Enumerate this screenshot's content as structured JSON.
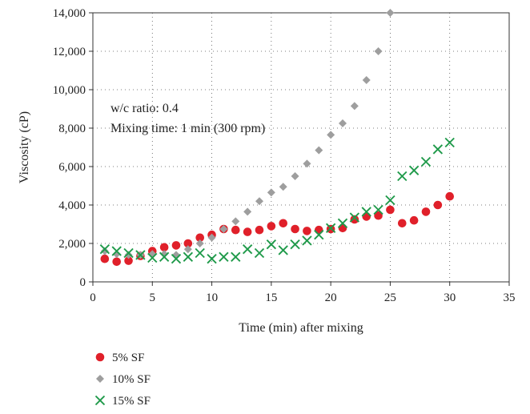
{
  "chart_data": {
    "type": "scatter",
    "xlabel": "Time (min) after mixing",
    "ylabel": "Viscosity (cP)",
    "xlim": [
      0,
      35
    ],
    "ylim": [
      0,
      14000
    ],
    "x_ticks": [
      "0",
      "5",
      "10",
      "15",
      "20",
      "25",
      "30",
      "35"
    ],
    "y_ticks": [
      "0",
      "2,000",
      "4,000",
      "6,000",
      "8,000",
      "10,000",
      "12,000",
      "14,000"
    ],
    "grid": "dotted",
    "legend_position": "bottom-left",
    "annotations": [
      "w/c ratio: 0.4",
      "Mixing time: 1 min (300 rpm)"
    ],
    "series": [
      {
        "name": "5% SF",
        "marker": "circle",
        "color": "#e0202a",
        "x": [
          1,
          2,
          3,
          4,
          5,
          6,
          7,
          8,
          9,
          10,
          11,
          12,
          13,
          14,
          15,
          16,
          17,
          18,
          19,
          20,
          21,
          22,
          23,
          24,
          25,
          26,
          27,
          28,
          29,
          30
        ],
        "y": [
          1200,
          1050,
          1100,
          1350,
          1600,
          1800,
          1900,
          2000,
          2300,
          2450,
          2750,
          2700,
          2600,
          2700,
          2900,
          3050,
          2750,
          2650,
          2700,
          2750,
          2800,
          3250,
          3400,
          3450,
          3750,
          3050,
          3200,
          3650,
          4000,
          4450
        ]
      },
      {
        "name": "10% SF",
        "marker": "diamond",
        "color": "#9e9e9e",
        "x": [
          1,
          2,
          3,
          4,
          5,
          6,
          7,
          8,
          9,
          10,
          11,
          12,
          13,
          14,
          15,
          16,
          17,
          18,
          19,
          20,
          21,
          22,
          23,
          24,
          25
        ],
        "y": [
          1600,
          1450,
          1400,
          1400,
          1450,
          1450,
          1400,
          1700,
          2000,
          2300,
          2750,
          3150,
          3650,
          4200,
          4650,
          4950,
          5500,
          6150,
          6850,
          7650,
          8250,
          9150,
          10500,
          12000,
          14000
        ]
      },
      {
        "name": "15% SF",
        "marker": "x",
        "color": "#1f9a4a",
        "x": [
          1,
          2,
          3,
          4,
          5,
          6,
          7,
          8,
          9,
          10,
          11,
          12,
          13,
          14,
          15,
          16,
          17,
          18,
          19,
          20,
          21,
          22,
          23,
          24,
          25,
          26,
          27,
          28,
          29,
          30
        ],
        "y": [
          1700,
          1600,
          1500,
          1400,
          1250,
          1300,
          1200,
          1300,
          1500,
          1200,
          1300,
          1300,
          1700,
          1500,
          1950,
          1650,
          1950,
          2150,
          2450,
          2800,
          3050,
          3350,
          3650,
          3750,
          4250,
          5500,
          5800,
          6250,
          6900,
          7250
        ]
      }
    ]
  }
}
